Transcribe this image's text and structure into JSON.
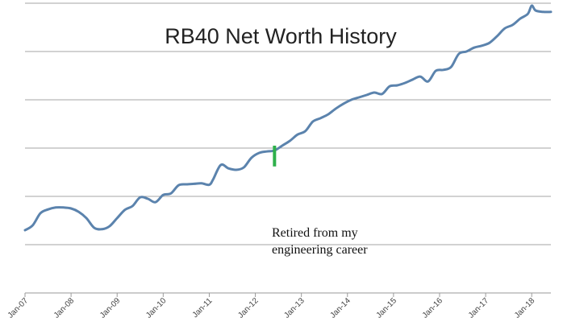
{
  "chart_data": {
    "type": "line",
    "title": "RB40 Net Worth History",
    "xlabel": "",
    "ylabel": "",
    "x_ticks": [
      "Jan-07",
      "Jan-08",
      "Jan-09",
      "Jan-10",
      "Jan-11",
      "Jan-12",
      "Jan-13",
      "Jan-14",
      "Jan-15",
      "Jan-16",
      "Jan-17",
      "Jan-18"
    ],
    "xlim": [
      "2007-01",
      "2018-06"
    ],
    "ylim": [
      0,
      6
    ],
    "y_ticks_labeled": false,
    "grid": "horizontal",
    "legend": "none",
    "line_color": "#5B83AD",
    "series": [
      {
        "x": [
          "2007-01",
          "2007-03",
          "2007-05",
          "2007-07",
          "2007-09",
          "2007-11",
          "2008-01",
          "2008-03",
          "2008-05",
          "2008-07",
          "2008-09",
          "2008-11",
          "2009-01",
          "2009-03",
          "2009-05",
          "2009-07",
          "2009-09",
          "2009-11",
          "2010-01",
          "2010-03",
          "2010-05",
          "2010-07",
          "2010-09",
          "2010-11",
          "2011-01",
          "2011-02",
          "2011-04",
          "2011-06",
          "2011-08",
          "2011-10",
          "2011-12",
          "2012-02",
          "2012-04",
          "2012-06",
          "2012-08",
          "2012-10",
          "2012-12",
          "2013-02",
          "2013-04",
          "2013-06",
          "2013-08",
          "2013-10",
          "2013-12",
          "2014-02",
          "2014-04",
          "2014-06",
          "2014-08",
          "2014-10",
          "2014-12",
          "2015-02",
          "2015-04",
          "2015-06",
          "2015-08",
          "2015-10",
          "2015-12",
          "2016-02",
          "2016-04",
          "2016-06",
          "2016-08",
          "2016-10",
          "2016-12",
          "2017-02",
          "2017-04",
          "2017-06",
          "2017-08",
          "2017-10",
          "2017-12",
          "2018-01",
          "2018-02",
          "2018-04",
          "2018-06"
        ],
        "values": [
          1.3,
          1.4,
          1.65,
          1.73,
          1.77,
          1.77,
          1.75,
          1.68,
          1.55,
          1.35,
          1.32,
          1.38,
          1.55,
          1.72,
          1.8,
          1.98,
          1.95,
          1.88,
          2.03,
          2.06,
          2.23,
          2.25,
          2.26,
          2.27,
          2.24,
          2.35,
          2.65,
          2.58,
          2.55,
          2.6,
          2.8,
          2.9,
          2.93,
          2.95,
          3.05,
          3.15,
          3.28,
          3.35,
          3.55,
          3.62,
          3.7,
          3.82,
          3.92,
          4.0,
          4.05,
          4.1,
          4.15,
          4.12,
          4.28,
          4.3,
          4.35,
          4.42,
          4.48,
          4.38,
          4.6,
          4.62,
          4.68,
          4.95,
          5.0,
          5.08,
          5.12,
          5.18,
          5.32,
          5.48,
          5.55,
          5.68,
          5.78,
          5.95,
          5.85,
          5.82,
          5.82
        ]
      }
    ],
    "marker": {
      "x": "2012-06",
      "y_from": 2.62,
      "y_to": 3.05,
      "color": "#2EB04B"
    },
    "annotation": {
      "lines": [
        "Retired from my",
        "engineering career"
      ]
    }
  }
}
